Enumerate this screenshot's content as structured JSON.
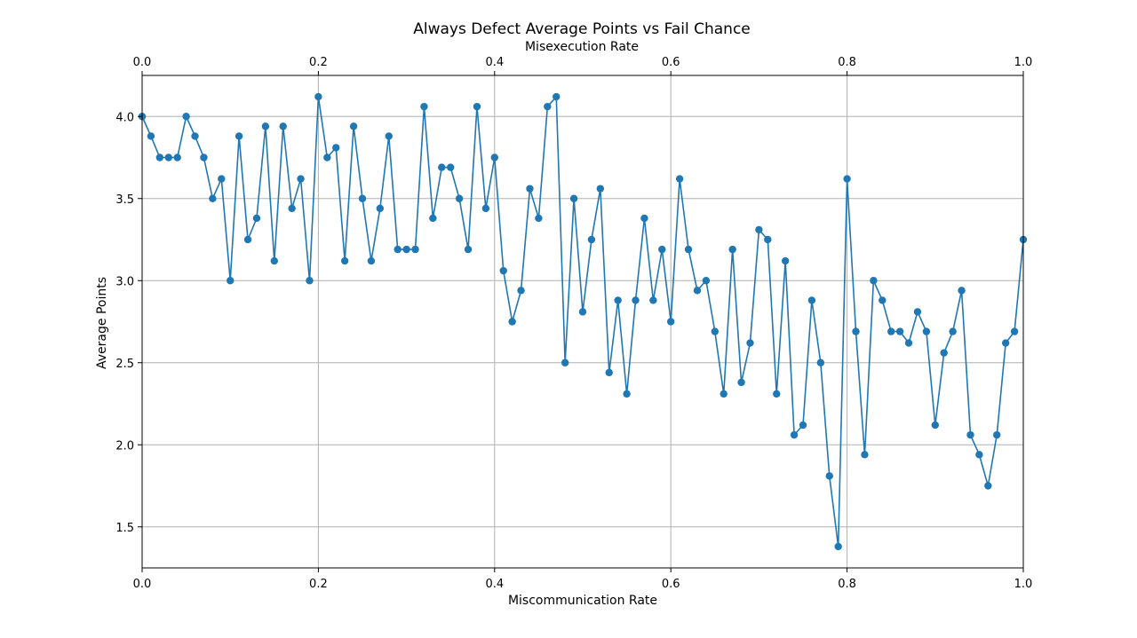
{
  "chart_data": {
    "type": "line",
    "title": "Always Defect Average Points vs Fail Chance",
    "xlabel": "Miscommunication Rate",
    "x2label": "Misexecution Rate",
    "ylabel": "Average Points",
    "xlim": [
      0,
      1
    ],
    "ylim": [
      1.25,
      4.25
    ],
    "xticks": [
      0,
      0.2,
      0.4,
      0.6,
      0.8,
      1.0
    ],
    "xtick_labels": [
      "0.0",
      "0.2",
      "0.4",
      "0.6",
      "0.8",
      "1.0"
    ],
    "yticks": [
      1.5,
      2.0,
      2.5,
      3.0,
      3.5,
      4.0
    ],
    "ytick_labels": [
      "1.5",
      "2.0",
      "2.5",
      "3.0",
      "3.5",
      "4.0"
    ],
    "grid": true,
    "color": "#1f77b4",
    "x": [
      0.0,
      0.01,
      0.02,
      0.03,
      0.04,
      0.05,
      0.06,
      0.07,
      0.08,
      0.09,
      0.1,
      0.11,
      0.12,
      0.13,
      0.14,
      0.15,
      0.16,
      0.17,
      0.18,
      0.19,
      0.2,
      0.21,
      0.22,
      0.23,
      0.24,
      0.25,
      0.26,
      0.27,
      0.28,
      0.29,
      0.3,
      0.31,
      0.32,
      0.33,
      0.34,
      0.35,
      0.36,
      0.37,
      0.38,
      0.39,
      0.4,
      0.41,
      0.42,
      0.43,
      0.44,
      0.45,
      0.46,
      0.47,
      0.48,
      0.49,
      0.5,
      0.51,
      0.52,
      0.53,
      0.54,
      0.55,
      0.56,
      0.57,
      0.58,
      0.59,
      0.6,
      0.61,
      0.62,
      0.63,
      0.64,
      0.65,
      0.66,
      0.67,
      0.68,
      0.69,
      0.7,
      0.71,
      0.72,
      0.73,
      0.74,
      0.75,
      0.76,
      0.77,
      0.78,
      0.79,
      0.8,
      0.81,
      0.82,
      0.83,
      0.84,
      0.85,
      0.86,
      0.87,
      0.88,
      0.89,
      0.9,
      0.91,
      0.92,
      0.93,
      0.94,
      0.95,
      0.96,
      0.97,
      0.98,
      0.99,
      1.0
    ],
    "y": [
      4.0,
      3.88,
      3.75,
      3.75,
      3.75,
      4.0,
      3.88,
      3.75,
      3.5,
      3.62,
      3.0,
      3.88,
      3.25,
      3.38,
      3.94,
      3.12,
      3.94,
      3.44,
      3.62,
      3.0,
      4.12,
      3.75,
      3.81,
      3.12,
      3.94,
      3.5,
      3.12,
      3.44,
      3.88,
      3.19,
      3.19,
      3.19,
      4.06,
      3.38,
      3.69,
      3.69,
      3.5,
      3.19,
      4.06,
      3.44,
      3.75,
      3.06,
      2.75,
      2.94,
      3.56,
      3.38,
      4.06,
      4.12,
      2.5,
      3.5,
      2.81,
      3.25,
      3.56,
      2.44,
      2.88,
      2.31,
      2.88,
      3.38,
      2.88,
      3.19,
      2.75,
      3.62,
      3.19,
      2.94,
      3.0,
      2.69,
      2.31,
      3.19,
      2.38,
      2.62,
      3.31,
      3.25,
      2.31,
      3.12,
      2.06,
      2.12,
      2.88,
      2.5,
      1.81,
      1.38,
      3.62,
      2.69,
      1.94,
      3.0,
      2.88,
      2.69,
      2.69,
      2.62,
      2.81,
      2.69,
      2.12,
      2.56,
      2.69,
      2.94,
      2.06,
      1.94,
      1.75,
      2.06,
      2.62,
      2.69,
      3.25
    ]
  }
}
